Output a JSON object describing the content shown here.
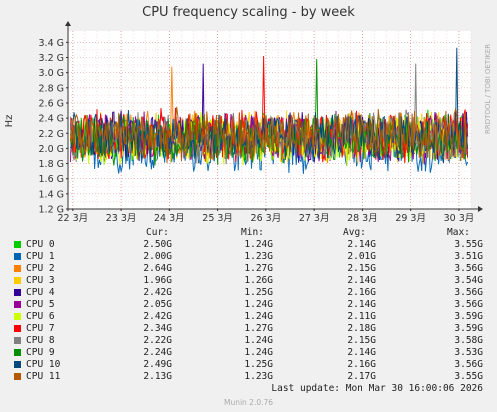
{
  "title": "CPU frequency scaling - by week",
  "side_label": "RRDTOOL / TOBI OETIKER",
  "legend_headers": {
    "cur": "Cur:",
    "min": "Min:",
    "avg": "Avg:",
    "max": "Max:"
  },
  "legend": [
    {
      "name": "CPU 0",
      "color": "#00cc00",
      "cur": "2.50G",
      "min": "1.24G",
      "avg": "2.14G",
      "max": "3.55G"
    },
    {
      "name": "CPU 1",
      "color": "#0066b3",
      "cur": "2.00G",
      "min": "1.23G",
      "avg": "2.01G",
      "max": "3.51G"
    },
    {
      "name": "CPU 2",
      "color": "#ff8000",
      "cur": "2.64G",
      "min": "1.27G",
      "avg": "2.15G",
      "max": "3.56G"
    },
    {
      "name": "CPU 3",
      "color": "#ffcc00",
      "cur": "1.96G",
      "min": "1.26G",
      "avg": "2.14G",
      "max": "3.54G"
    },
    {
      "name": "CPU 4",
      "color": "#330099",
      "cur": "2.42G",
      "min": "1.25G",
      "avg": "2.16G",
      "max": "3.56G"
    },
    {
      "name": "CPU 5",
      "color": "#990099",
      "cur": "2.05G",
      "min": "1.24G",
      "avg": "2.14G",
      "max": "3.56G"
    },
    {
      "name": "CPU 6",
      "color": "#ccff00",
      "cur": "2.42G",
      "min": "1.24G",
      "avg": "2.11G",
      "max": "3.59G"
    },
    {
      "name": "CPU 7",
      "color": "#ff0000",
      "cur": "2.34G",
      "min": "1.27G",
      "avg": "2.18G",
      "max": "3.59G"
    },
    {
      "name": "CPU 8",
      "color": "#808080",
      "cur": "2.22G",
      "min": "1.24G",
      "avg": "2.15G",
      "max": "3.58G"
    },
    {
      "name": "CPU 9",
      "color": "#008f00",
      "cur": "2.24G",
      "min": "1.24G",
      "avg": "2.14G",
      "max": "3.53G"
    },
    {
      "name": "CPU 10",
      "color": "#00487d",
      "cur": "2.49G",
      "min": "1.25G",
      "avg": "2.16G",
      "max": "3.56G"
    },
    {
      "name": "CPU 11",
      "color": "#b35a00",
      "cur": "2.13G",
      "min": "1.23G",
      "avg": "2.17G",
      "max": "3.55G"
    }
  ],
  "last_update": "Last update: Mon Mar 30 16:00:06 2026",
  "footer": "Munin 2.0.76",
  "chart_data": {
    "type": "line",
    "ylabel": "Hz",
    "yticks": [
      "1.2 G",
      "1.4 G",
      "1.6 G",
      "1.8 G",
      "2.0 G",
      "2.2 G",
      "2.4 G",
      "2.6 G",
      "2.8 G",
      "3.0 G",
      "3.2 G",
      "3.4 G"
    ],
    "ytick_values": [
      1.2,
      1.4,
      1.6,
      1.8,
      2.0,
      2.2,
      2.4,
      2.6,
      2.8,
      3.0,
      3.2,
      3.4
    ],
    "ylim": [
      1.2,
      3.55
    ],
    "xticks": [
      "22 3月",
      "23 3月",
      "24 3月",
      "25 3月",
      "26 3月",
      "27 3月",
      "28 3月",
      "29 3月",
      "30 3月"
    ],
    "xtick_positions": [
      0,
      1,
      2,
      3,
      4,
      5,
      6,
      7,
      8
    ],
    "xlim": [
      -0.1,
      8.25
    ],
    "grid": true,
    "series_names": [
      "CPU 0",
      "CPU 1",
      "CPU 2",
      "CPU 3",
      "CPU 4",
      "CPU 5",
      "CPU 6",
      "CPU 7",
      "CPU 8",
      "CPU 9",
      "CPU 10",
      "CPU 11"
    ],
    "series_mean": [
      2.14,
      2.01,
      2.15,
      2.14,
      2.16,
      2.14,
      2.11,
      2.18,
      2.15,
      2.14,
      2.16,
      2.17
    ],
    "series_spread": 0.32,
    "series_peaks": [
      {
        "series": "CPU 10",
        "x": 7.95,
        "y": 3.33
      },
      {
        "series": "CPU 7",
        "x": 3.95,
        "y": 3.22
      },
      {
        "series": "CPU 9",
        "x": 5.05,
        "y": 3.18
      },
      {
        "series": "CPU 8",
        "x": 7.1,
        "y": 3.12
      },
      {
        "series": "CPU 4",
        "x": 2.7,
        "y": 3.12
      },
      {
        "series": "CPU 2",
        "x": 2.05,
        "y": 3.08
      }
    ]
  }
}
